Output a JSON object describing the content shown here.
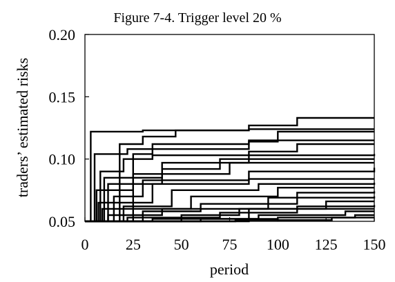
{
  "chart_data": {
    "type": "line",
    "title": "Figure 7-4. Trigger level 20 %",
    "xlabel": "period",
    "ylabel": "traders’ estimated risks",
    "xlim": [
      0,
      150
    ],
    "ylim": [
      0.05,
      0.2
    ],
    "x_ticks": [
      "0",
      "25",
      "50",
      "75",
      "100",
      "125",
      "150"
    ],
    "y_ticks": [
      "0.05",
      "0.10",
      "0.15",
      "0.20"
    ],
    "step_style": "step-after",
    "grid": false,
    "legend": "none",
    "series": [
      {
        "steps": [
          [
            0,
            0.05
          ],
          [
            3,
            0.122
          ],
          [
            30,
            0.123
          ],
          [
            85,
            0.124
          ],
          [
            150,
            0.124
          ]
        ]
      },
      {
        "steps": [
          [
            0,
            0.05
          ],
          [
            18,
            0.112
          ],
          [
            30,
            0.118
          ],
          [
            47,
            0.123
          ],
          [
            85,
            0.127
          ],
          [
            110,
            0.133
          ],
          [
            150,
            0.133
          ]
        ]
      },
      {
        "steps": [
          [
            0,
            0.05
          ],
          [
            25,
            0.104
          ],
          [
            35,
            0.112
          ],
          [
            85,
            0.114
          ],
          [
            100,
            0.122
          ],
          [
            150,
            0.122
          ]
        ]
      },
      {
        "steps": [
          [
            0,
            0.05
          ],
          [
            5,
            0.104
          ],
          [
            22,
            0.108
          ],
          [
            85,
            0.115
          ],
          [
            150,
            0.115
          ]
        ]
      },
      {
        "steps": [
          [
            0,
            0.05
          ],
          [
            8,
            0.09
          ],
          [
            20,
            0.1
          ],
          [
            35,
            0.103
          ],
          [
            85,
            0.106
          ],
          [
            110,
            0.112
          ],
          [
            150,
            0.112
          ]
        ]
      },
      {
        "steps": [
          [
            0,
            0.05
          ],
          [
            10,
            0.085
          ],
          [
            40,
            0.097
          ],
          [
            85,
            0.103
          ],
          [
            150,
            0.104
          ]
        ]
      },
      {
        "steps": [
          [
            0,
            0.05
          ],
          [
            12,
            0.08
          ],
          [
            40,
            0.092
          ],
          [
            70,
            0.1
          ],
          [
            150,
            0.1
          ]
        ]
      },
      {
        "steps": [
          [
            0,
            0.05
          ],
          [
            6,
            0.075
          ],
          [
            25,
            0.088
          ],
          [
            75,
            0.097
          ],
          [
            150,
            0.097
          ]
        ]
      },
      {
        "steps": [
          [
            0,
            0.05
          ],
          [
            15,
            0.07
          ],
          [
            30,
            0.083
          ],
          [
            85,
            0.09
          ],
          [
            150,
            0.093
          ]
        ]
      },
      {
        "steps": [
          [
            0,
            0.05
          ],
          [
            7,
            0.065
          ],
          [
            35,
            0.08
          ],
          [
            85,
            0.084
          ],
          [
            150,
            0.084
          ]
        ]
      },
      {
        "steps": [
          [
            0,
            0.05
          ],
          [
            20,
            0.062
          ],
          [
            45,
            0.075
          ],
          [
            90,
            0.08
          ],
          [
            150,
            0.081
          ]
        ]
      },
      {
        "steps": [
          [
            0,
            0.05
          ],
          [
            9,
            0.06
          ],
          [
            55,
            0.07
          ],
          [
            100,
            0.077
          ],
          [
            150,
            0.077
          ]
        ]
      },
      {
        "steps": [
          [
            0,
            0.05
          ],
          [
            30,
            0.058
          ],
          [
            60,
            0.064
          ],
          [
            110,
            0.073
          ],
          [
            150,
            0.074
          ]
        ]
      },
      {
        "steps": [
          [
            0,
            0.05
          ],
          [
            12,
            0.055
          ],
          [
            40,
            0.06
          ],
          [
            95,
            0.069
          ],
          [
            150,
            0.07
          ]
        ]
      },
      {
        "steps": [
          [
            0,
            0.05
          ],
          [
            50,
            0.055
          ],
          [
            80,
            0.06
          ],
          [
            125,
            0.066
          ],
          [
            150,
            0.066
          ]
        ]
      },
      {
        "steps": [
          [
            0,
            0.05
          ],
          [
            22,
            0.053
          ],
          [
            70,
            0.057
          ],
          [
            110,
            0.062
          ],
          [
            150,
            0.063
          ]
        ]
      },
      {
        "steps": [
          [
            0,
            0.05
          ],
          [
            35,
            0.052
          ],
          [
            90,
            0.055
          ],
          [
            135,
            0.058
          ],
          [
            150,
            0.058
          ]
        ]
      },
      {
        "steps": [
          [
            0,
            0.05
          ],
          [
            60,
            0.052
          ],
          [
            100,
            0.053
          ],
          [
            140,
            0.055
          ],
          [
            150,
            0.055
          ]
        ]
      },
      {
        "steps": [
          [
            0,
            0.05
          ],
          [
            78,
            0.051
          ],
          [
            128,
            0.053
          ],
          [
            150,
            0.053
          ]
        ]
      },
      {
        "steps": [
          [
            0,
            0.05
          ],
          [
            10,
            0.05
          ],
          [
            85,
            0.06
          ],
          [
            150,
            0.06
          ]
        ]
      }
    ]
  }
}
